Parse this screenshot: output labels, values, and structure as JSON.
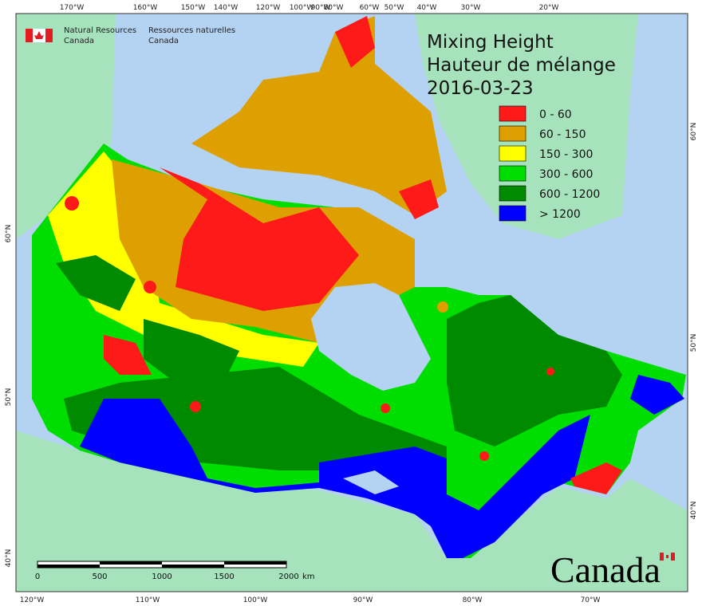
{
  "header": {
    "org_en": [
      "Natural Resources",
      "Canada"
    ],
    "org_fr": [
      "Ressources naturelles",
      "Canada"
    ]
  },
  "title": {
    "lines": [
      "Mixing Height",
      "Hauteur de mélange",
      "2016-03-23"
    ]
  },
  "legend": {
    "items": [
      {
        "label": "0 - 60",
        "color": "#ff1a1a"
      },
      {
        "label": "60 - 150",
        "color": "#dea000"
      },
      {
        "label": "150 - 300",
        "color": "#ffff00"
      },
      {
        "label": "300 - 600",
        "color": "#00dd00"
      },
      {
        "label": "600 - 1200",
        "color": "#008a00"
      },
      {
        "label": "> 1200",
        "color": "#0000ff"
      }
    ]
  },
  "axes": {
    "top": [
      "170°W",
      "160°W",
      "150°W",
      "140°W",
      "120°W",
      "100°W",
      "90°W",
      "80°W",
      "60°W",
      "50°W",
      "40°W",
      "30°W",
      "20°W"
    ],
    "bottom": [
      "120°W",
      "110°W",
      "100°W",
      "90°W",
      "80°W",
      "70°W"
    ],
    "left": [
      "60°N",
      "50°N",
      "40°N"
    ],
    "right": [
      "60°N",
      "50°N",
      "40°N"
    ]
  },
  "scale_bar": {
    "labels": [
      "0",
      "500",
      "1000",
      "1500",
      "2000"
    ],
    "unit": "km"
  },
  "wordmark": "Canada"
}
